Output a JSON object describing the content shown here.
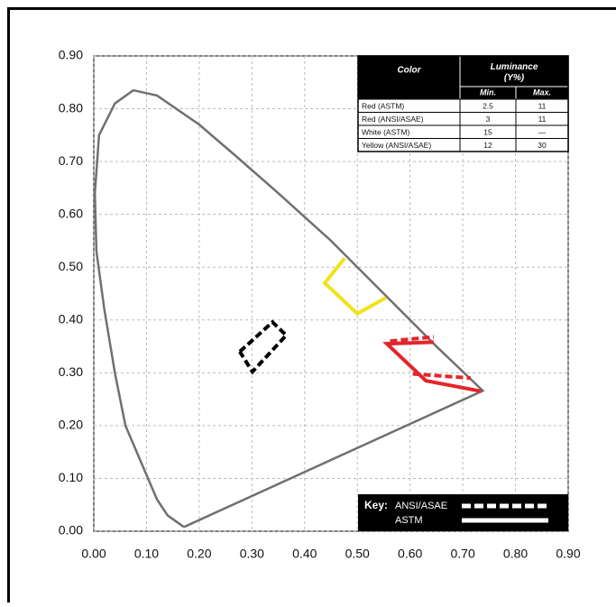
{
  "chart_data": {
    "type": "line",
    "xlim": [
      0,
      0.9
    ],
    "ylim": [
      0,
      0.9
    ],
    "xticks": [
      {
        "value": 0,
        "label": "0.00"
      },
      {
        "value": 0.1,
        "label": "0.10"
      },
      {
        "value": 0.2,
        "label": "0.20"
      },
      {
        "value": 0.3,
        "label": "0.30"
      },
      {
        "value": 0.4,
        "label": "0.40"
      },
      {
        "value": 0.5,
        "label": "0.50"
      },
      {
        "value": 0.6,
        "label": "0.60"
      },
      {
        "value": 0.7,
        "label": "0.70"
      },
      {
        "value": 0.8,
        "label": "0.80"
      },
      {
        "value": 0.9,
        "label": "0.90"
      }
    ],
    "yticks": [
      {
        "value": 0,
        "label": "0.00"
      },
      {
        "value": 0.1,
        "label": "0.10"
      },
      {
        "value": 0.2,
        "label": "0.20"
      },
      {
        "value": 0.3,
        "label": "0.30"
      },
      {
        "value": 0.4,
        "label": "0.40"
      },
      {
        "value": 0.5,
        "label": "0.50"
      },
      {
        "value": 0.6,
        "label": "0.60"
      },
      {
        "value": 0.7,
        "label": "0.70"
      },
      {
        "value": 0.8,
        "label": "0.80"
      },
      {
        "value": 0.9,
        "label": "0.90"
      }
    ],
    "grid": true,
    "series": [
      {
        "color": "#707070",
        "dashed": false,
        "x": [
          0.171,
          0.14,
          0.12,
          0.09,
          0.06,
          0.04,
          0.02,
          0.005,
          0.002,
          0.01,
          0.04,
          0.075,
          0.12,
          0.2,
          0.27,
          0.35,
          0.45,
          0.55,
          0.65,
          0.738,
          0.171
        ],
        "values": [
          0.008,
          0.03,
          0.06,
          0.13,
          0.2,
          0.3,
          0.42,
          0.53,
          0.64,
          0.75,
          0.81,
          0.835,
          0.825,
          0.77,
          0.71,
          0.64,
          0.55,
          0.45,
          0.35,
          0.266,
          0.008
        ]
      },
      {
        "color": "#f2e21b",
        "dashed": false,
        "x": [
          0.476,
          0.438,
          0.5,
          0.554
        ],
        "values": [
          0.517,
          0.47,
          0.412,
          0.442
        ]
      },
      {
        "color": "#e3262b",
        "dashed": false,
        "x": [
          0.645,
          0.556,
          0.63,
          0.735
        ],
        "values": [
          0.358,
          0.355,
          0.285,
          0.265
        ]
      },
      {
        "color": "#e3262b",
        "dashed": true,
        "x": [
          0.562,
          0.645,
          null,
          0.605,
          0.715
        ],
        "values": [
          0.36,
          0.368,
          null,
          0.298,
          0.29
        ]
      },
      {
        "color": "#000000",
        "dashed": true,
        "x": [
          0.277,
          0.339,
          0.365,
          0.301,
          0.277
        ],
        "values": [
          0.34,
          0.396,
          0.371,
          0.302,
          0.34
        ]
      }
    ]
  },
  "table": {
    "headers": [
      "Color",
      "Luminance (Y%)"
    ],
    "subheaders": [
      "Min.",
      "Max."
    ],
    "rows": [
      [
        "Red (ASTM)",
        2.5,
        11
      ],
      [
        "Red (ANSI/ASAE)",
        3,
        11
      ],
      [
        "White (ASTM)",
        15,
        "—"
      ],
      [
        "Yellow (ANSI/ASAE)",
        12,
        30
      ]
    ]
  },
  "key": {
    "label": "Key:",
    "entries": [
      "ANSI/ASAE",
      "ASTM"
    ]
  }
}
